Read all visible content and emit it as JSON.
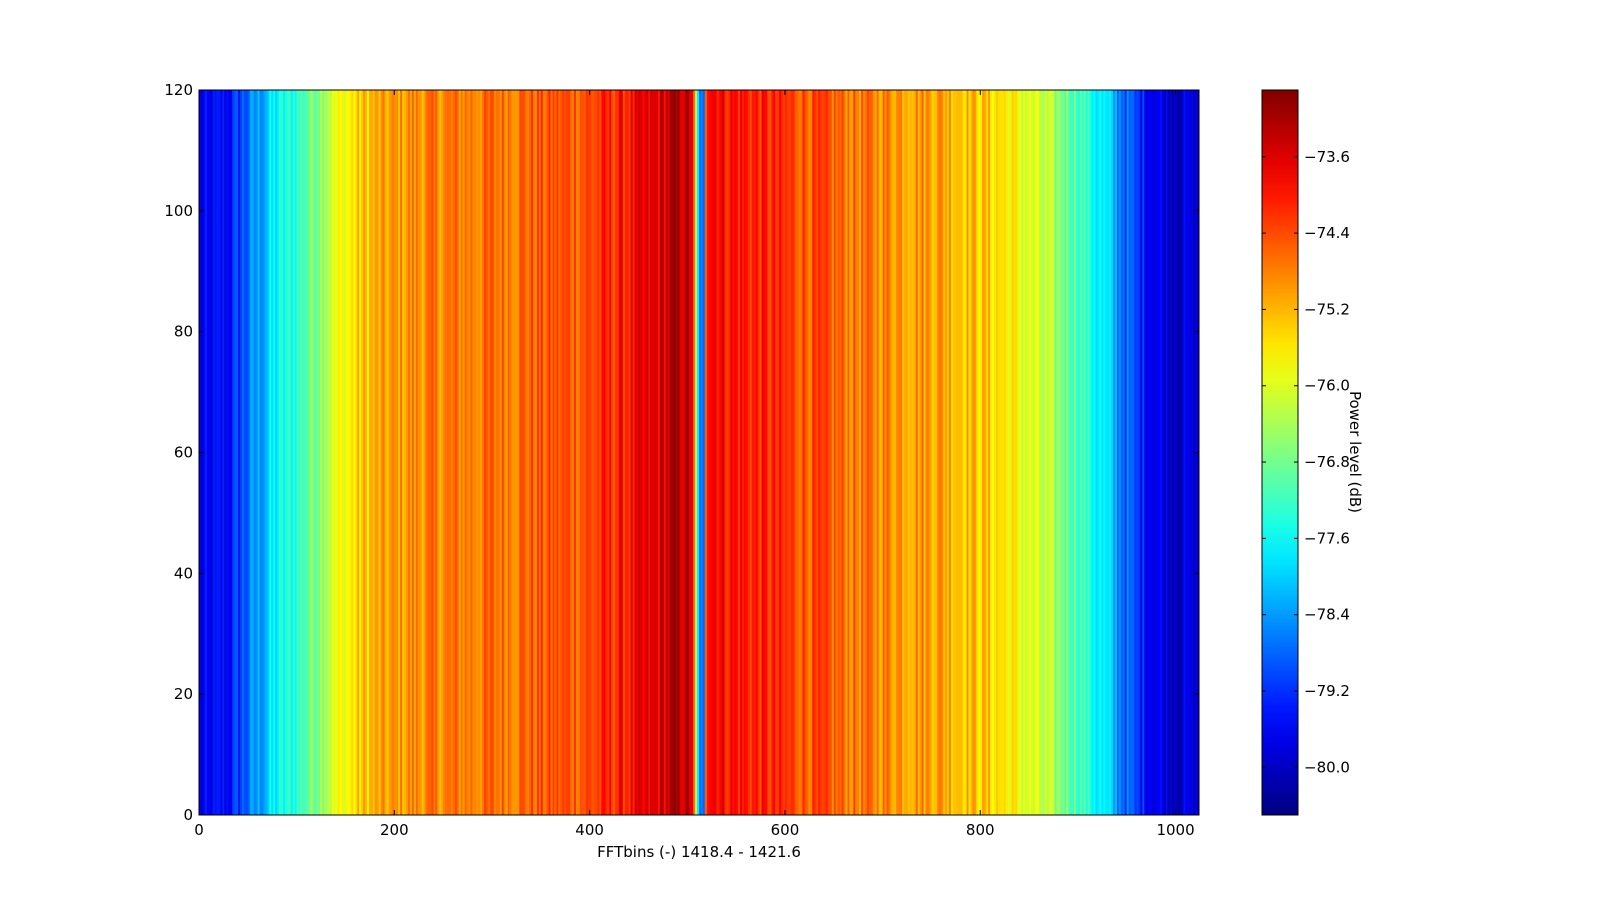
{
  "chart_data": {
    "type": "heatmap",
    "colormap": "jet",
    "xlabel": "FFTbins (-) 1418.4 - 1421.6",
    "ylabel": "",
    "xlim": [
      0,
      1024
    ],
    "ylim": [
      0,
      120
    ],
    "x_ticks": [
      0,
      200,
      400,
      600,
      800,
      1000
    ],
    "y_ticks": [
      0,
      20,
      40,
      60,
      80,
      100,
      120
    ],
    "x_tick_labels": [
      "0",
      "200",
      "400",
      "600",
      "800",
      "1000"
    ],
    "y_tick_labels": [
      "0",
      "20",
      "40",
      "60",
      "80",
      "100",
      "120"
    ],
    "colorbar": {
      "label": "Power level (dB)",
      "range": [
        -80.5,
        -72.9
      ],
      "ticks": [
        -73.6,
        -74.4,
        -75.2,
        -76.0,
        -76.8,
        -77.6,
        -78.4,
        -79.2,
        -80.0
      ],
      "tick_labels": [
        "−73.6",
        "−74.4",
        "−75.2",
        "−76.0",
        "−76.8",
        "−77.6",
        "−78.4",
        "−79.2",
        "−80.0"
      ]
    },
    "profile": {
      "description_units": "approximate power (dB) per FFT bin, constant over time rows",
      "bins": [
        0,
        30,
        60,
        80,
        100,
        130,
        170,
        220,
        300,
        400,
        460,
        490,
        505,
        512,
        520,
        540,
        600,
        680,
        760,
        820,
        860,
        900,
        930,
        960,
        990,
        1024
      ],
      "power": [
        -79.8,
        -79.5,
        -78.4,
        -77.7,
        -77.3,
        -76.2,
        -75.3,
        -74.9,
        -74.7,
        -74.4,
        -73.8,
        -73.3,
        -73.5,
        -78.7,
        -73.6,
        -73.9,
        -74.3,
        -74.8,
        -75.0,
        -75.5,
        -76.2,
        -77.0,
        -78.0,
        -79.2,
        -79.8,
        -79.9
      ]
    },
    "center_dip": {
      "bins": [
        512,
        518
      ],
      "power": -78.7
    },
    "grid": false
  }
}
